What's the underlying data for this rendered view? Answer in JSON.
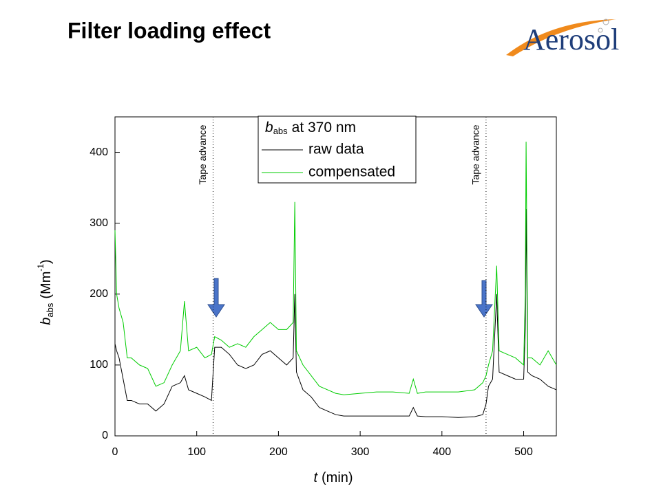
{
  "header": {
    "title": "Filter loading effect",
    "logo": "Aerosol"
  },
  "chart_data": {
    "type": "line",
    "legend_title": {
      "symbol": "b",
      "subscript": "abs",
      "text": "at 370 nm"
    },
    "y_label": {
      "symbol": "b",
      "subscript": "abs",
      "unit": "(Mm",
      "exponent": "-1",
      "close": ")"
    },
    "x_label": {
      "symbol": "t",
      "unit": "(min)"
    },
    "x": [
      0,
      2,
      5,
      10,
      15,
      20,
      30,
      40,
      50,
      60,
      70,
      80,
      85,
      90,
      100,
      110,
      118,
      122,
      130,
      140,
      150,
      160,
      170,
      180,
      190,
      200,
      210,
      218,
      220,
      222,
      230,
      240,
      250,
      260,
      270,
      280,
      300,
      320,
      340,
      360,
      365,
      370,
      380,
      400,
      420,
      440,
      450,
      454,
      457,
      462,
      467,
      470,
      480,
      490,
      500,
      502,
      503,
      505,
      510,
      520,
      530,
      540
    ],
    "series": [
      {
        "name": "raw data",
        "color": "#000000",
        "values": [
          130,
          120,
          110,
          80,
          50,
          50,
          45,
          45,
          35,
          45,
          70,
          75,
          85,
          65,
          60,
          55,
          50,
          125,
          125,
          115,
          100,
          95,
          100,
          115,
          120,
          110,
          100,
          110,
          200,
          90,
          65,
          55,
          40,
          35,
          30,
          28,
          28,
          28,
          28,
          28,
          40,
          28,
          27,
          27,
          26,
          27,
          30,
          45,
          70,
          80,
          200,
          90,
          85,
          80,
          80,
          150,
          320,
          90,
          85,
          80,
          70,
          65
        ]
      },
      {
        "name": "compensated",
        "color": "#00cc00",
        "values": [
          290,
          200,
          180,
          160,
          110,
          110,
          100,
          95,
          70,
          75,
          100,
          120,
          190,
          120,
          125,
          110,
          115,
          140,
          135,
          125,
          130,
          125,
          140,
          150,
          160,
          150,
          150,
          160,
          330,
          120,
          100,
          85,
          70,
          65,
          60,
          58,
          60,
          62,
          62,
          60,
          80,
          60,
          62,
          62,
          62,
          65,
          75,
          85,
          100,
          120,
          240,
          120,
          115,
          110,
          100,
          200,
          415,
          110,
          110,
          100,
          120,
          100
        ]
      }
    ],
    "annotations": [
      {
        "text": "Tape advance",
        "x": 120
      },
      {
        "text": "Tape advance",
        "x": 454
      }
    ],
    "xlim": [
      0,
      540
    ],
    "xticks": [
      0,
      100,
      200,
      300,
      400,
      500
    ],
    "ylim": [
      0,
      450
    ],
    "yticks": [
      0,
      100,
      200,
      300,
      400
    ],
    "legend": "top-center"
  }
}
